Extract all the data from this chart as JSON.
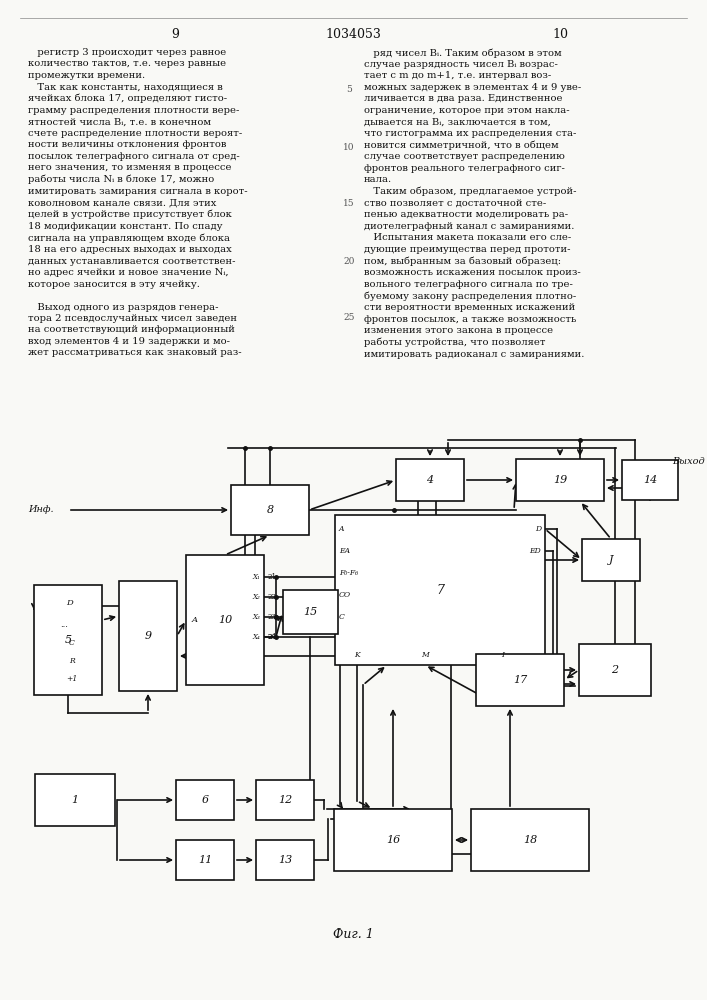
{
  "title": "1034053",
  "page_left": "9",
  "page_right": "10",
  "fig_label": "Фиг. 1",
  "bg_color": "#f9f9f6",
  "text_left": "   регистр 3 происходит через равное\nколичество тактов, т.е. через равные\nпромежутки времени.\n   Так как константы, находящиеся в\nячейках блока 17, определяют гисто-\nграмму распределения плотности вере-\nятностей числа Bᵢ, т.е. в конечном\nсчете распределение плотности вероят-\nности величины отклонения фронтов\nпосылок телеграфного сигнала от сред-\nнего значения, то изменяя в процессе\nработы числа Nᵢ в блоке 17, можно\nимитировать замирания сигнала в корот-\nковолновом канале связи. Для этих\nцелей в устройстве присутствует блок\n18 модификации констант. По спаду\nсигнала на управляющем входе блока\n18 на его адресных выходах и выходах\nданных устанавливается соответствен-\nно адрес ячейки и новое значение Nᵢ,\nкоторое заносится в эту ячейку.\n\n   Выход одного из разрядов генера-\nтора 2 псевдослучайных чисел заведен\nна соответствующий информационный\nвход элементов 4 и 19 задержки и мо-\nжет рассматриваться как знаковый раз-",
  "text_right": "   ряд чисел Bᵢ. Таким образом в этом\nслучае разрядность чисел Bᵢ возрас-\nтает с m до m+1, т.е. интервал воз-\nможных задержек в элементах 4 и 9 уве-\nличивается в два раза. Единственное\nограничение, которое при этом накла-\nдывается на Bᵢ, заключается в том,\nчто гистограмма их распределения ста-\nновится симметричной, что в общем\nслучае соответствует распределению\nфронтов реального телеграфного сиг-\nнала.\n   Таким образом, предлагаемое устрой-\nство позволяет с достаточной сте-\nпенью адекватности моделировать ра-\nдиотелеграфный канал с замираниями.\n   Испытания макета показали его сле-\nдующие преимущества перед прототи-\nпом, выбранным за базовый образец:\nвозможность искажения посылок произ-\nвольного телеграфного сигнала по тре-\nбуемому закону распределения плотно-\nсти вероятности временных искажений\nфронтов посылок, а также возможность\nизменения этого закона в процессе\nработы устройства, что позволяет\nимитировать радиоканал с замираниями."
}
